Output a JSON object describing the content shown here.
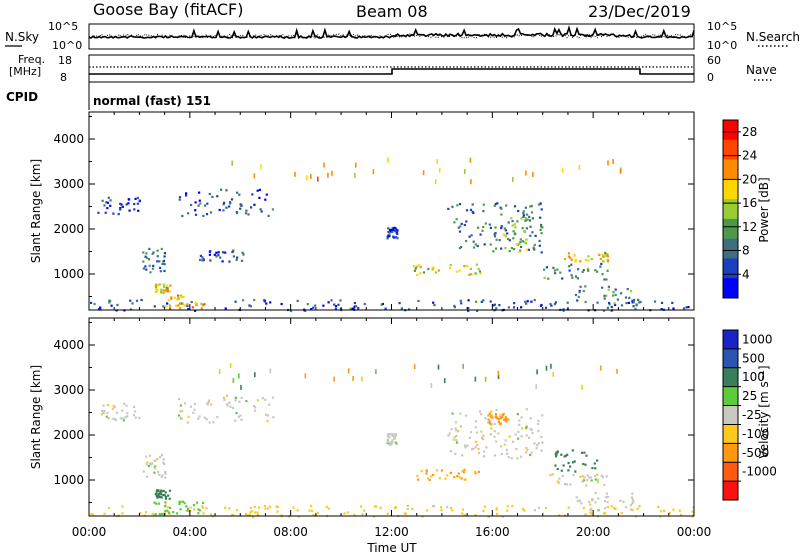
{
  "header": {
    "station": "Goose Bay (fitACF)",
    "beam": "Beam 08",
    "date": "23/Dec/2019"
  },
  "top_panels": {
    "nsky_label": "N.Sky",
    "nsky_ticks": [
      "10^5",
      "10^0"
    ],
    "nsearch_label": "N.Search",
    "nsearch_ticks": [
      "10^5",
      "10^0"
    ],
    "freq_label_1": "Freq.",
    "freq_label_2": "[MHz]",
    "freq_ticks": [
      "18",
      "8"
    ],
    "nave_label": "Nave",
    "nave_ticks": [
      "60",
      "0"
    ],
    "cpid_label": "CPID",
    "cpid_text": "normal (fast) 151"
  },
  "colors": {
    "power_scale": [
      "#0000ff",
      "#1a3fbf",
      "#3f6f7f",
      "#4a9a4a",
      "#9acd32",
      "#ffd700",
      "#ff8c00",
      "#ff4500",
      "#ff0000"
    ],
    "velocity_scale": [
      "#1a22c8",
      "#2a55b0",
      "#3a7f5a",
      "#5ccc3a",
      "#c8c8c0",
      "#ffc820",
      "#ff9a10",
      "#ff5a10",
      "#ff1010"
    ]
  },
  "chart_data": [
    {
      "type": "heatmap",
      "panel": "power",
      "ylabel": "Slant Range [km]",
      "yticks": [
        "1000",
        "2000",
        "3000",
        "4000"
      ],
      "ylim": [
        200,
        4600
      ],
      "xlabel": "Time UT",
      "xticks": [
        "00:00",
        "04:00",
        "08:00",
        "12:00",
        "16:00",
        "20:00",
        "00:00"
      ],
      "xlim_hours": [
        0,
        24
      ],
      "colorbar": {
        "label": "Power [dB]",
        "ticks": [
          "28",
          "24",
          "20",
          "16",
          "12",
          "8",
          "4"
        ],
        "range": [
          0,
          30
        ]
      },
      "regions": [
        {
          "t0": 0.0,
          "t1": 24.0,
          "r0": 200,
          "r1": 450,
          "value": 6
        },
        {
          "t0": 3.0,
          "t1": 4.6,
          "r0": 250,
          "r1": 550,
          "value": 20
        },
        {
          "t0": 2.1,
          "t1": 3.0,
          "r0": 1050,
          "r1": 1600,
          "value": 8
        },
        {
          "t0": 2.6,
          "t1": 3.2,
          "r0": 600,
          "r1": 800,
          "value": 16
        },
        {
          "t0": 0.3,
          "t1": 2.0,
          "r0": 2350,
          "r1": 2750,
          "value": 4
        },
        {
          "t0": 3.5,
          "t1": 7.3,
          "r0": 2300,
          "r1": 2900,
          "value": 6
        },
        {
          "t0": 4.3,
          "t1": 6.1,
          "r0": 1300,
          "r1": 1550,
          "value": 6
        },
        {
          "t0": 11.8,
          "t1": 12.2,
          "r0": 1800,
          "r1": 2050,
          "value": 6
        },
        {
          "t0": 12.8,
          "t1": 15.6,
          "r0": 1000,
          "r1": 1250,
          "value": 16
        },
        {
          "t0": 14.2,
          "t1": 18.0,
          "r0": 1500,
          "r1": 2600,
          "value": 8
        },
        {
          "t0": 16.4,
          "t1": 17.4,
          "r0": 1500,
          "r1": 2300,
          "value": 14
        },
        {
          "t0": 18.8,
          "t1": 20.6,
          "r0": 1300,
          "r1": 1500,
          "value": 18
        },
        {
          "t0": 18.0,
          "t1": 20.6,
          "r0": 900,
          "r1": 1250,
          "value": 10
        },
        {
          "t0": 19.2,
          "t1": 21.6,
          "r0": 350,
          "r1": 750,
          "value": 10
        }
      ]
    },
    {
      "type": "heatmap",
      "panel": "velocity",
      "ylabel": "Slant Range [km]",
      "yticks": [
        "1000",
        "2000",
        "3000",
        "4000"
      ],
      "ylim": [
        200,
        4600
      ],
      "xlabel": "Time UT",
      "xticks": [
        "00:00",
        "04:00",
        "08:00",
        "12:00",
        "16:00",
        "20:00",
        "00:00"
      ],
      "xlim_hours": [
        0,
        24
      ],
      "colorbar": {
        "label": "Velocity [m s⁻¹]",
        "ticks": [
          "1000",
          "500",
          "100",
          "25",
          "-25",
          "-100",
          "-500",
          "-1000"
        ]
      },
      "regions": [
        {
          "t0": 0.0,
          "t1": 24.0,
          "r0": 200,
          "r1": 450,
          "value": -50
        },
        {
          "t0": 2.5,
          "t1": 4.5,
          "r0": 250,
          "r1": 550,
          "value": 60
        },
        {
          "t0": 2.1,
          "t1": 3.0,
          "r0": 1050,
          "r1": 1600,
          "value": 0
        },
        {
          "t0": 2.6,
          "t1": 3.2,
          "r0": 600,
          "r1": 800,
          "value": 150
        },
        {
          "t0": 0.3,
          "t1": 2.0,
          "r0": 2350,
          "r1": 2750,
          "value": 0
        },
        {
          "t0": 3.5,
          "t1": 7.3,
          "r0": 2300,
          "r1": 2900,
          "value": 0
        },
        {
          "t0": 11.8,
          "t1": 12.2,
          "r0": 1800,
          "r1": 2050,
          "value": 0
        },
        {
          "t0": 12.8,
          "t1": 15.6,
          "r0": 1000,
          "r1": 1250,
          "value": -100
        },
        {
          "t0": 14.2,
          "t1": 18.0,
          "r0": 1500,
          "r1": 2600,
          "value": 0
        },
        {
          "t0": 15.8,
          "t1": 16.6,
          "r0": 2250,
          "r1": 2500,
          "value": -300
        },
        {
          "t0": 18.4,
          "t1": 20.2,
          "r0": 1200,
          "r1": 1700,
          "value": 150
        },
        {
          "t0": 18.0,
          "t1": 20.6,
          "r0": 900,
          "r1": 1150,
          "value": 0
        },
        {
          "t0": 19.2,
          "t1": 21.6,
          "r0": 350,
          "r1": 750,
          "value": 0
        }
      ]
    }
  ]
}
